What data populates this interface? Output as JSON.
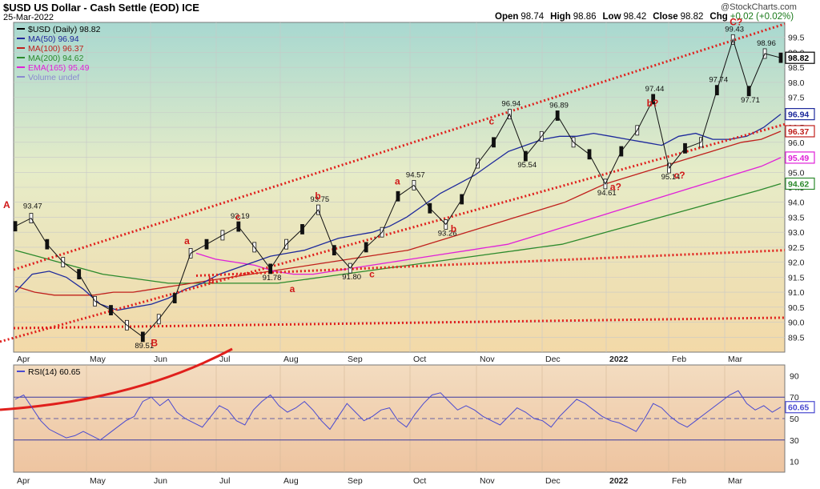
{
  "header": {
    "title": "$USD US Dollar - Cash Settle (EOD) ICE",
    "date": "25-Mar-2022",
    "brand": "@StockCharts.com",
    "ohlc": [
      {
        "k": "Open",
        "v": "98.74"
      },
      {
        "k": "High",
        "v": "98.86"
      },
      {
        "k": "Low",
        "v": "98.42"
      },
      {
        "k": "Close",
        "v": "98.82"
      },
      {
        "k": "Chg",
        "v": "+0.02 (+0.02%)"
      }
    ]
  },
  "chart_data": [
    {
      "type": "line",
      "title": "$USD US Dollar - Cash Settle (EOD) ICE",
      "ylim": [
        89.0,
        100.0
      ],
      "x_ticks": [
        "Apr",
        "May",
        "Jun",
        "Jul",
        "Aug",
        "Sep",
        "Oct",
        "Nov",
        "Dec",
        "2022",
        "Feb",
        "Mar"
      ],
      "y_ticks": [
        89.5,
        90.0,
        90.5,
        91.0,
        91.5,
        92.0,
        92.5,
        93.0,
        93.5,
        94.0,
        94.5,
        95.0,
        95.5,
        96.0,
        96.5,
        97.0,
        97.5,
        98.0,
        98.5,
        99.0,
        99.5
      ],
      "legend": [
        {
          "label": "$USD (Daily) 98.82",
          "color": "#000000"
        },
        {
          "label": "MA(50) 96.94",
          "color": "#1e2a9c"
        },
        {
          "label": "MA(100) 96.37",
          "color": "#c0201c"
        },
        {
          "label": "MA(200) 94.62",
          "color": "#2c8a2c"
        },
        {
          "label": "EMA(165) 95.49",
          "color": "#e020d8"
        },
        {
          "label": "Volume undef",
          "color": "#8a8ad0"
        }
      ],
      "badges": [
        {
          "value": "98.82",
          "color": "#000000"
        },
        {
          "value": "96.94",
          "color": "#1e2a9c"
        },
        {
          "value": "96.37",
          "color": "#c0201c"
        },
        {
          "value": "95.49",
          "color": "#e020d8"
        },
        {
          "value": "94.62",
          "color": "#2c8a2c"
        }
      ],
      "price": [
        [
          "Apr",
          93.2
        ],
        [
          "Apr",
          93.47
        ],
        [
          "Apr",
          92.6
        ],
        [
          "Apr",
          92.0
        ],
        [
          "May",
          91.6
        ],
        [
          "May",
          90.7
        ],
        [
          "May",
          90.4
        ],
        [
          "May",
          89.9
        ],
        [
          "Jun",
          89.51
        ],
        [
          "Jun",
          90.1
        ],
        [
          "Jun",
          90.8
        ],
        [
          "Jun",
          92.3
        ],
        [
          "Jul",
          92.6
        ],
        [
          "Jul",
          92.9
        ],
        [
          "Jul",
          93.19
        ],
        [
          "Jul",
          92.5
        ],
        [
          "Aug",
          91.78
        ],
        [
          "Aug",
          92.6
        ],
        [
          "Aug",
          93.1
        ],
        [
          "Aug",
          93.75
        ],
        [
          "Sep",
          92.4
        ],
        [
          "Sep",
          91.8
        ],
        [
          "Sep",
          92.5
        ],
        [
          "Sep",
          93.0
        ],
        [
          "Oct",
          94.2
        ],
        [
          "Oct",
          94.57
        ],
        [
          "Oct",
          93.8
        ],
        [
          "Oct",
          93.26
        ],
        [
          "Nov",
          94.1
        ],
        [
          "Nov",
          95.3
        ],
        [
          "Nov",
          96.0
        ],
        [
          "Nov",
          96.94
        ],
        [
          "Dec",
          95.54
        ],
        [
          "Dec",
          96.2
        ],
        [
          "Dec",
          96.89
        ],
        [
          "Dec",
          96.0
        ],
        [
          "2022",
          95.6
        ],
        [
          "2022",
          94.61
        ],
        [
          "2022",
          95.7
        ],
        [
          "2022",
          96.4
        ],
        [
          "Feb",
          97.44
        ],
        [
          "Feb",
          95.14
        ],
        [
          "Feb",
          95.8
        ],
        [
          "Feb",
          96.0
        ],
        [
          "Mar",
          97.74
        ],
        [
          "Mar",
          99.43
        ],
        [
          "Mar",
          97.71
        ],
        [
          "Mar",
          98.96
        ],
        [
          "Mar",
          98.82
        ]
      ],
      "ma50": [
        91.0,
        91.6,
        91.7,
        91.5,
        91.1,
        90.6,
        90.4,
        90.5,
        90.6,
        90.8,
        91.1,
        91.3,
        91.6,
        91.8,
        92.0,
        92.2,
        92.3,
        92.4,
        92.6,
        92.8,
        92.9,
        93.0,
        93.2,
        93.5,
        93.9,
        94.3,
        94.6,
        94.9,
        95.3,
        95.7,
        95.9,
        96.1,
        96.2,
        96.2,
        96.3,
        96.2,
        96.1,
        96.0,
        95.9,
        96.2,
        96.3,
        96.1,
        96.1,
        96.2,
        96.5,
        96.94
      ],
      "ma100": [
        91.2,
        91.0,
        90.9,
        90.9,
        90.9,
        91.0,
        91.0,
        91.1,
        91.2,
        91.3,
        91.4,
        91.5,
        91.6,
        91.7,
        91.8,
        91.9,
        92.0,
        92.1,
        92.2,
        92.3,
        92.4,
        92.6,
        92.8,
        93.0,
        93.2,
        93.4,
        93.6,
        93.8,
        94.0,
        94.3,
        94.6,
        94.8,
        95.0,
        95.2,
        95.4,
        95.6,
        95.8,
        96.0,
        96.1,
        96.37
      ],
      "ma200": [
        92.4,
        92.2,
        92.0,
        91.8,
        91.6,
        91.5,
        91.4,
        91.3,
        91.3,
        91.3,
        91.3,
        91.3,
        91.3,
        91.4,
        91.5,
        91.6,
        91.7,
        91.8,
        91.9,
        92.0,
        92.1,
        92.2,
        92.3,
        92.4,
        92.5,
        92.6,
        92.8,
        93.0,
        93.2,
        93.4,
        93.6,
        93.8,
        94.0,
        94.2,
        94.4,
        94.62
      ],
      "ema165": [
        92.3,
        92.1,
        92.0,
        91.9,
        91.7,
        91.6,
        91.6,
        91.7,
        91.8,
        91.9,
        92.0,
        92.1,
        92.2,
        92.3,
        92.4,
        92.5,
        92.6,
        92.8,
        93.0,
        93.2,
        93.4,
        93.6,
        93.8,
        94.0,
        94.2,
        94.4,
        94.6,
        94.8,
        95.0,
        95.2,
        95.49
      ],
      "annotations": [
        {
          "text": "93.47"
        },
        {
          "text": "89.51"
        },
        {
          "text": "93.19"
        },
        {
          "text": "91.78"
        },
        {
          "text": "93.75"
        },
        {
          "text": "91.80"
        },
        {
          "text": "94.57"
        },
        {
          "text": "93.26"
        },
        {
          "text": "96.94"
        },
        {
          "text": "95.54"
        },
        {
          "text": "96.89"
        },
        {
          "text": "94.61"
        },
        {
          "text": "97.44"
        },
        {
          "text": "95.14"
        },
        {
          "text": "97.74"
        },
        {
          "text": "99.43"
        },
        {
          "text": "97.71"
        },
        {
          "text": "98.96"
        }
      ],
      "wave_labels": [
        "A",
        "B",
        "a",
        "b",
        "c",
        "a",
        "b",
        "c",
        "a",
        "b",
        "c",
        "a?",
        "b?",
        "c?",
        "C?"
      ]
    },
    {
      "type": "line",
      "title": "RSI(14) 60.65",
      "ylim": [
        0,
        100
      ],
      "y_ticks": [
        10,
        30,
        50,
        70,
        90
      ],
      "reference_lines": [
        30,
        50,
        70
      ],
      "badge": "60.65",
      "rsi": [
        68,
        72,
        60,
        48,
        40,
        36,
        32,
        34,
        38,
        34,
        30,
        36,
        42,
        48,
        52,
        66,
        70,
        62,
        68,
        56,
        50,
        46,
        42,
        52,
        62,
        58,
        48,
        44,
        58,
        66,
        72,
        62,
        56,
        60,
        66,
        58,
        48,
        40,
        52,
        64,
        56,
        48,
        52,
        58,
        60,
        48,
        42,
        54,
        64,
        72,
        74,
        66,
        58,
        62,
        58,
        52,
        48,
        44,
        52,
        60,
        56,
        50,
        48,
        42,
        52,
        60,
        68,
        64,
        58,
        52,
        48,
        46,
        42,
        38,
        50,
        64,
        60,
        52,
        46,
        42,
        48,
        54,
        60,
        66,
        72,
        76,
        64,
        58,
        62,
        56,
        60.65
      ]
    }
  ]
}
